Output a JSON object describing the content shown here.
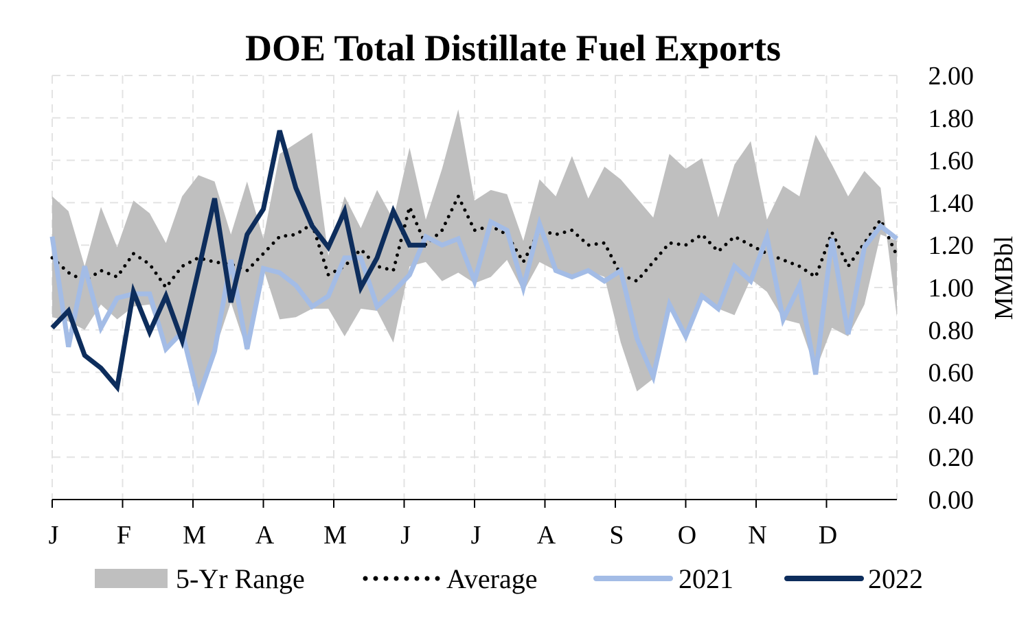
{
  "chart_data": {
    "type": "line",
    "title": "DOE Total Distillate Fuel Exports",
    "xlabel": "",
    "ylabel": "MMBbl",
    "months": [
      "J",
      "F",
      "M",
      "A",
      "M",
      "J",
      "J",
      "A",
      "S",
      "O",
      "N",
      "D"
    ],
    "ylim": [
      0,
      2
    ],
    "y_ticks": [
      "0.00",
      "0.20",
      "0.40",
      "0.60",
      "0.80",
      "1.00",
      "1.20",
      "1.40",
      "1.60",
      "1.80",
      "2.00"
    ],
    "y_axis_side": "right",
    "grid": true,
    "legend_position": "bottom",
    "weeks": 52,
    "range_upper": [
      1.43,
      1.36,
      1.1,
      1.38,
      1.19,
      1.41,
      1.35,
      1.21,
      1.43,
      1.53,
      1.5,
      1.25,
      1.5,
      1.23,
      1.63,
      1.68,
      1.73,
      1.15,
      1.43,
      1.28,
      1.46,
      1.32,
      1.66,
      1.32,
      1.56,
      1.84,
      1.41,
      1.46,
      1.44,
      1.22,
      1.51,
      1.43,
      1.62,
      1.42,
      1.57,
      1.51,
      1.42,
      1.33,
      1.63,
      1.56,
      1.61,
      1.33,
      1.58,
      1.69,
      1.32,
      1.48,
      1.43,
      1.72,
      1.58,
      1.43,
      1.55,
      1.47,
      0.86
    ],
    "range_lower": [
      0.86,
      0.84,
      0.8,
      0.92,
      0.85,
      0.91,
      0.92,
      0.7,
      0.8,
      0.48,
      0.7,
      0.93,
      0.7,
      1.09,
      0.85,
      0.86,
      0.9,
      0.9,
      0.77,
      0.9,
      0.89,
      0.74,
      1.1,
      1.12,
      1.03,
      1.07,
      1.02,
      1.05,
      1.13,
      0.98,
      1.12,
      1.08,
      1.05,
      1.08,
      1.05,
      0.74,
      0.51,
      0.57,
      0.93,
      0.76,
      0.95,
      0.9,
      0.87,
      1.04,
      0.98,
      0.85,
      0.83,
      0.61,
      0.81,
      0.77,
      0.92,
      1.25,
      1.22
    ],
    "series": [
      {
        "name": "Average",
        "color": "#000000",
        "values": [
          1.14,
          1.07,
          1.03,
          1.08,
          1.05,
          1.16,
          1.11,
          1.0,
          1.1,
          1.14,
          1.12,
          1.11,
          1.08,
          1.16,
          1.24,
          1.25,
          1.3,
          1.06,
          1.1,
          1.18,
          1.1,
          1.08,
          1.38,
          1.2,
          1.27,
          1.43,
          1.27,
          1.29,
          1.25,
          1.12,
          1.27,
          1.25,
          1.27,
          1.2,
          1.21,
          1.06,
          1.03,
          1.12,
          1.21,
          1.2,
          1.25,
          1.17,
          1.24,
          1.2,
          1.16,
          1.13,
          1.1,
          1.05,
          1.26,
          1.1,
          1.21,
          1.32,
          1.15
        ]
      },
      {
        "name": "2021",
        "color": "#a3bce6",
        "values": [
          1.24,
          0.72,
          1.1,
          0.81,
          0.95,
          0.97,
          0.97,
          0.71,
          0.79,
          0.48,
          0.7,
          1.13,
          0.71,
          1.09,
          1.07,
          1.01,
          0.91,
          0.96,
          1.14,
          1.14,
          0.91,
          0.98,
          1.06,
          1.24,
          1.2,
          1.23,
          1.03,
          1.31,
          1.27,
          1.0,
          1.3,
          1.08,
          1.05,
          1.08,
          1.03,
          1.08,
          0.76,
          0.58,
          0.92,
          0.77,
          0.96,
          0.9,
          1.1,
          1.03,
          1.24,
          0.85,
          1.01,
          0.59,
          1.23,
          0.78,
          1.19,
          1.29,
          1.23
        ]
      },
      {
        "name": "2022",
        "color": "#0d2d5c",
        "values": [
          0.81,
          0.89,
          0.68,
          0.62,
          0.53,
          0.98,
          0.79,
          0.96,
          0.75,
          1.08,
          1.42,
          0.93,
          1.25,
          1.37,
          1.74,
          1.47,
          1.29,
          1.19,
          1.36,
          1.0,
          1.14,
          1.36,
          1.2,
          1.2
        ]
      }
    ],
    "legend": [
      {
        "label": "5-Yr Range",
        "symbol": "band",
        "color": "#bfbfbf"
      },
      {
        "label": "Average",
        "symbol": "dotted",
        "color": "#000000"
      },
      {
        "label": "2021",
        "symbol": "line",
        "color": "#a3bce6"
      },
      {
        "label": "2022",
        "symbol": "line",
        "color": "#0d2d5c"
      }
    ]
  }
}
